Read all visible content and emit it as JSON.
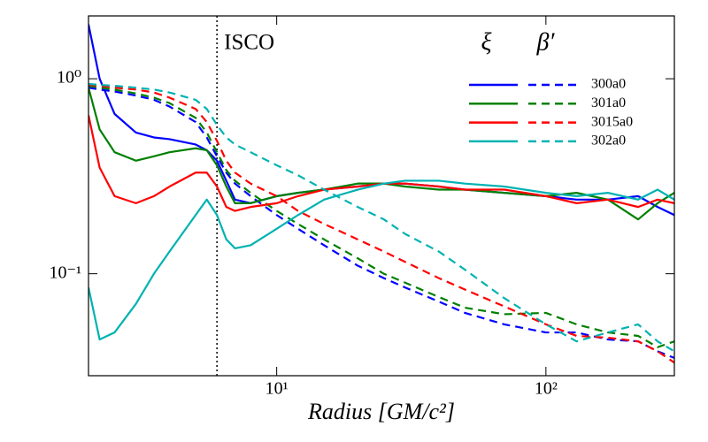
{
  "chart_data": {
    "type": "line",
    "xlabel": "Radius [GM/c²]",
    "xscale": "log",
    "yscale": "log",
    "xlim": [
      2,
      300
    ],
    "ylim": [
      0.03,
      2.1
    ],
    "xticks": [
      {
        "value": 10,
        "label": "10¹"
      },
      {
        "value": 100,
        "label": "10²"
      }
    ],
    "yticks": [
      {
        "value": 0.1,
        "label": "10⁻¹"
      },
      {
        "value": 1,
        "label": "10⁰"
      }
    ],
    "legend_columns": [
      "ξ",
      "β′"
    ],
    "linestyles": [
      "solid",
      "dashed"
    ],
    "annotations": [
      {
        "text": "ISCO",
        "x": 6
      }
    ],
    "x": [
      2,
      2.2,
      2.5,
      3,
      3.5,
      4,
      5,
      5.5,
      6,
      6.5,
      7,
      8,
      10,
      12,
      15,
      20,
      25,
      30,
      40,
      50,
      70,
      100,
      130,
      170,
      220,
      260,
      300
    ],
    "series": [
      {
        "name": "300a0",
        "color": "#0000ff",
        "xi": [
          1.9,
          1.0,
          0.66,
          0.53,
          0.5,
          0.49,
          0.46,
          0.43,
          0.38,
          0.3,
          0.24,
          0.23,
          0.25,
          0.26,
          0.27,
          0.28,
          0.29,
          0.29,
          0.28,
          0.27,
          0.26,
          0.25,
          0.24,
          0.24,
          0.25,
          0.22,
          0.2
        ],
        "beta": [
          0.9,
          0.88,
          0.86,
          0.82,
          0.78,
          0.72,
          0.6,
          0.5,
          0.4,
          0.33,
          0.29,
          0.25,
          0.2,
          0.17,
          0.14,
          0.11,
          0.095,
          0.085,
          0.072,
          0.063,
          0.055,
          0.05,
          0.05,
          0.046,
          0.045,
          0.04,
          0.037
        ]
      },
      {
        "name": "301a0",
        "color": "#008000",
        "xi": [
          0.9,
          0.55,
          0.42,
          0.38,
          0.4,
          0.42,
          0.44,
          0.43,
          0.36,
          0.28,
          0.23,
          0.23,
          0.25,
          0.26,
          0.27,
          0.29,
          0.29,
          0.28,
          0.27,
          0.27,
          0.26,
          0.25,
          0.26,
          0.24,
          0.19,
          0.23,
          0.26
        ],
        "beta": [
          0.92,
          0.9,
          0.88,
          0.84,
          0.8,
          0.75,
          0.63,
          0.53,
          0.42,
          0.34,
          0.3,
          0.26,
          0.21,
          0.18,
          0.15,
          0.12,
          0.1,
          0.09,
          0.076,
          0.067,
          0.062,
          0.063,
          0.055,
          0.05,
          0.048,
          0.042,
          0.045
        ]
      },
      {
        "name": "3015a0",
        "color": "#ff0000",
        "xi": [
          0.65,
          0.35,
          0.25,
          0.23,
          0.25,
          0.28,
          0.33,
          0.33,
          0.28,
          0.22,
          0.21,
          0.22,
          0.23,
          0.25,
          0.27,
          0.28,
          0.29,
          0.29,
          0.28,
          0.27,
          0.27,
          0.25,
          0.23,
          0.24,
          0.22,
          0.24,
          0.23
        ],
        "beta": [
          0.93,
          0.92,
          0.9,
          0.88,
          0.85,
          0.8,
          0.7,
          0.6,
          0.48,
          0.38,
          0.33,
          0.29,
          0.25,
          0.21,
          0.18,
          0.15,
          0.13,
          0.115,
          0.095,
          0.083,
          0.068,
          0.055,
          0.048,
          0.047,
          0.045,
          0.04,
          0.035
        ]
      },
      {
        "name": "302a0",
        "color": "#00b2b2",
        "xi": [
          0.085,
          0.046,
          0.05,
          0.07,
          0.1,
          0.13,
          0.2,
          0.24,
          0.2,
          0.15,
          0.135,
          0.14,
          0.17,
          0.2,
          0.24,
          0.27,
          0.29,
          0.3,
          0.3,
          0.29,
          0.28,
          0.26,
          0.25,
          0.26,
          0.24,
          0.27,
          0.24
        ],
        "beta": [
          0.94,
          0.93,
          0.92,
          0.9,
          0.88,
          0.85,
          0.78,
          0.7,
          0.58,
          0.5,
          0.46,
          0.42,
          0.36,
          0.32,
          0.27,
          0.22,
          0.19,
          0.16,
          0.13,
          0.105,
          0.075,
          0.055,
          0.045,
          0.05,
          0.055,
          0.045,
          0.04
        ]
      }
    ]
  }
}
